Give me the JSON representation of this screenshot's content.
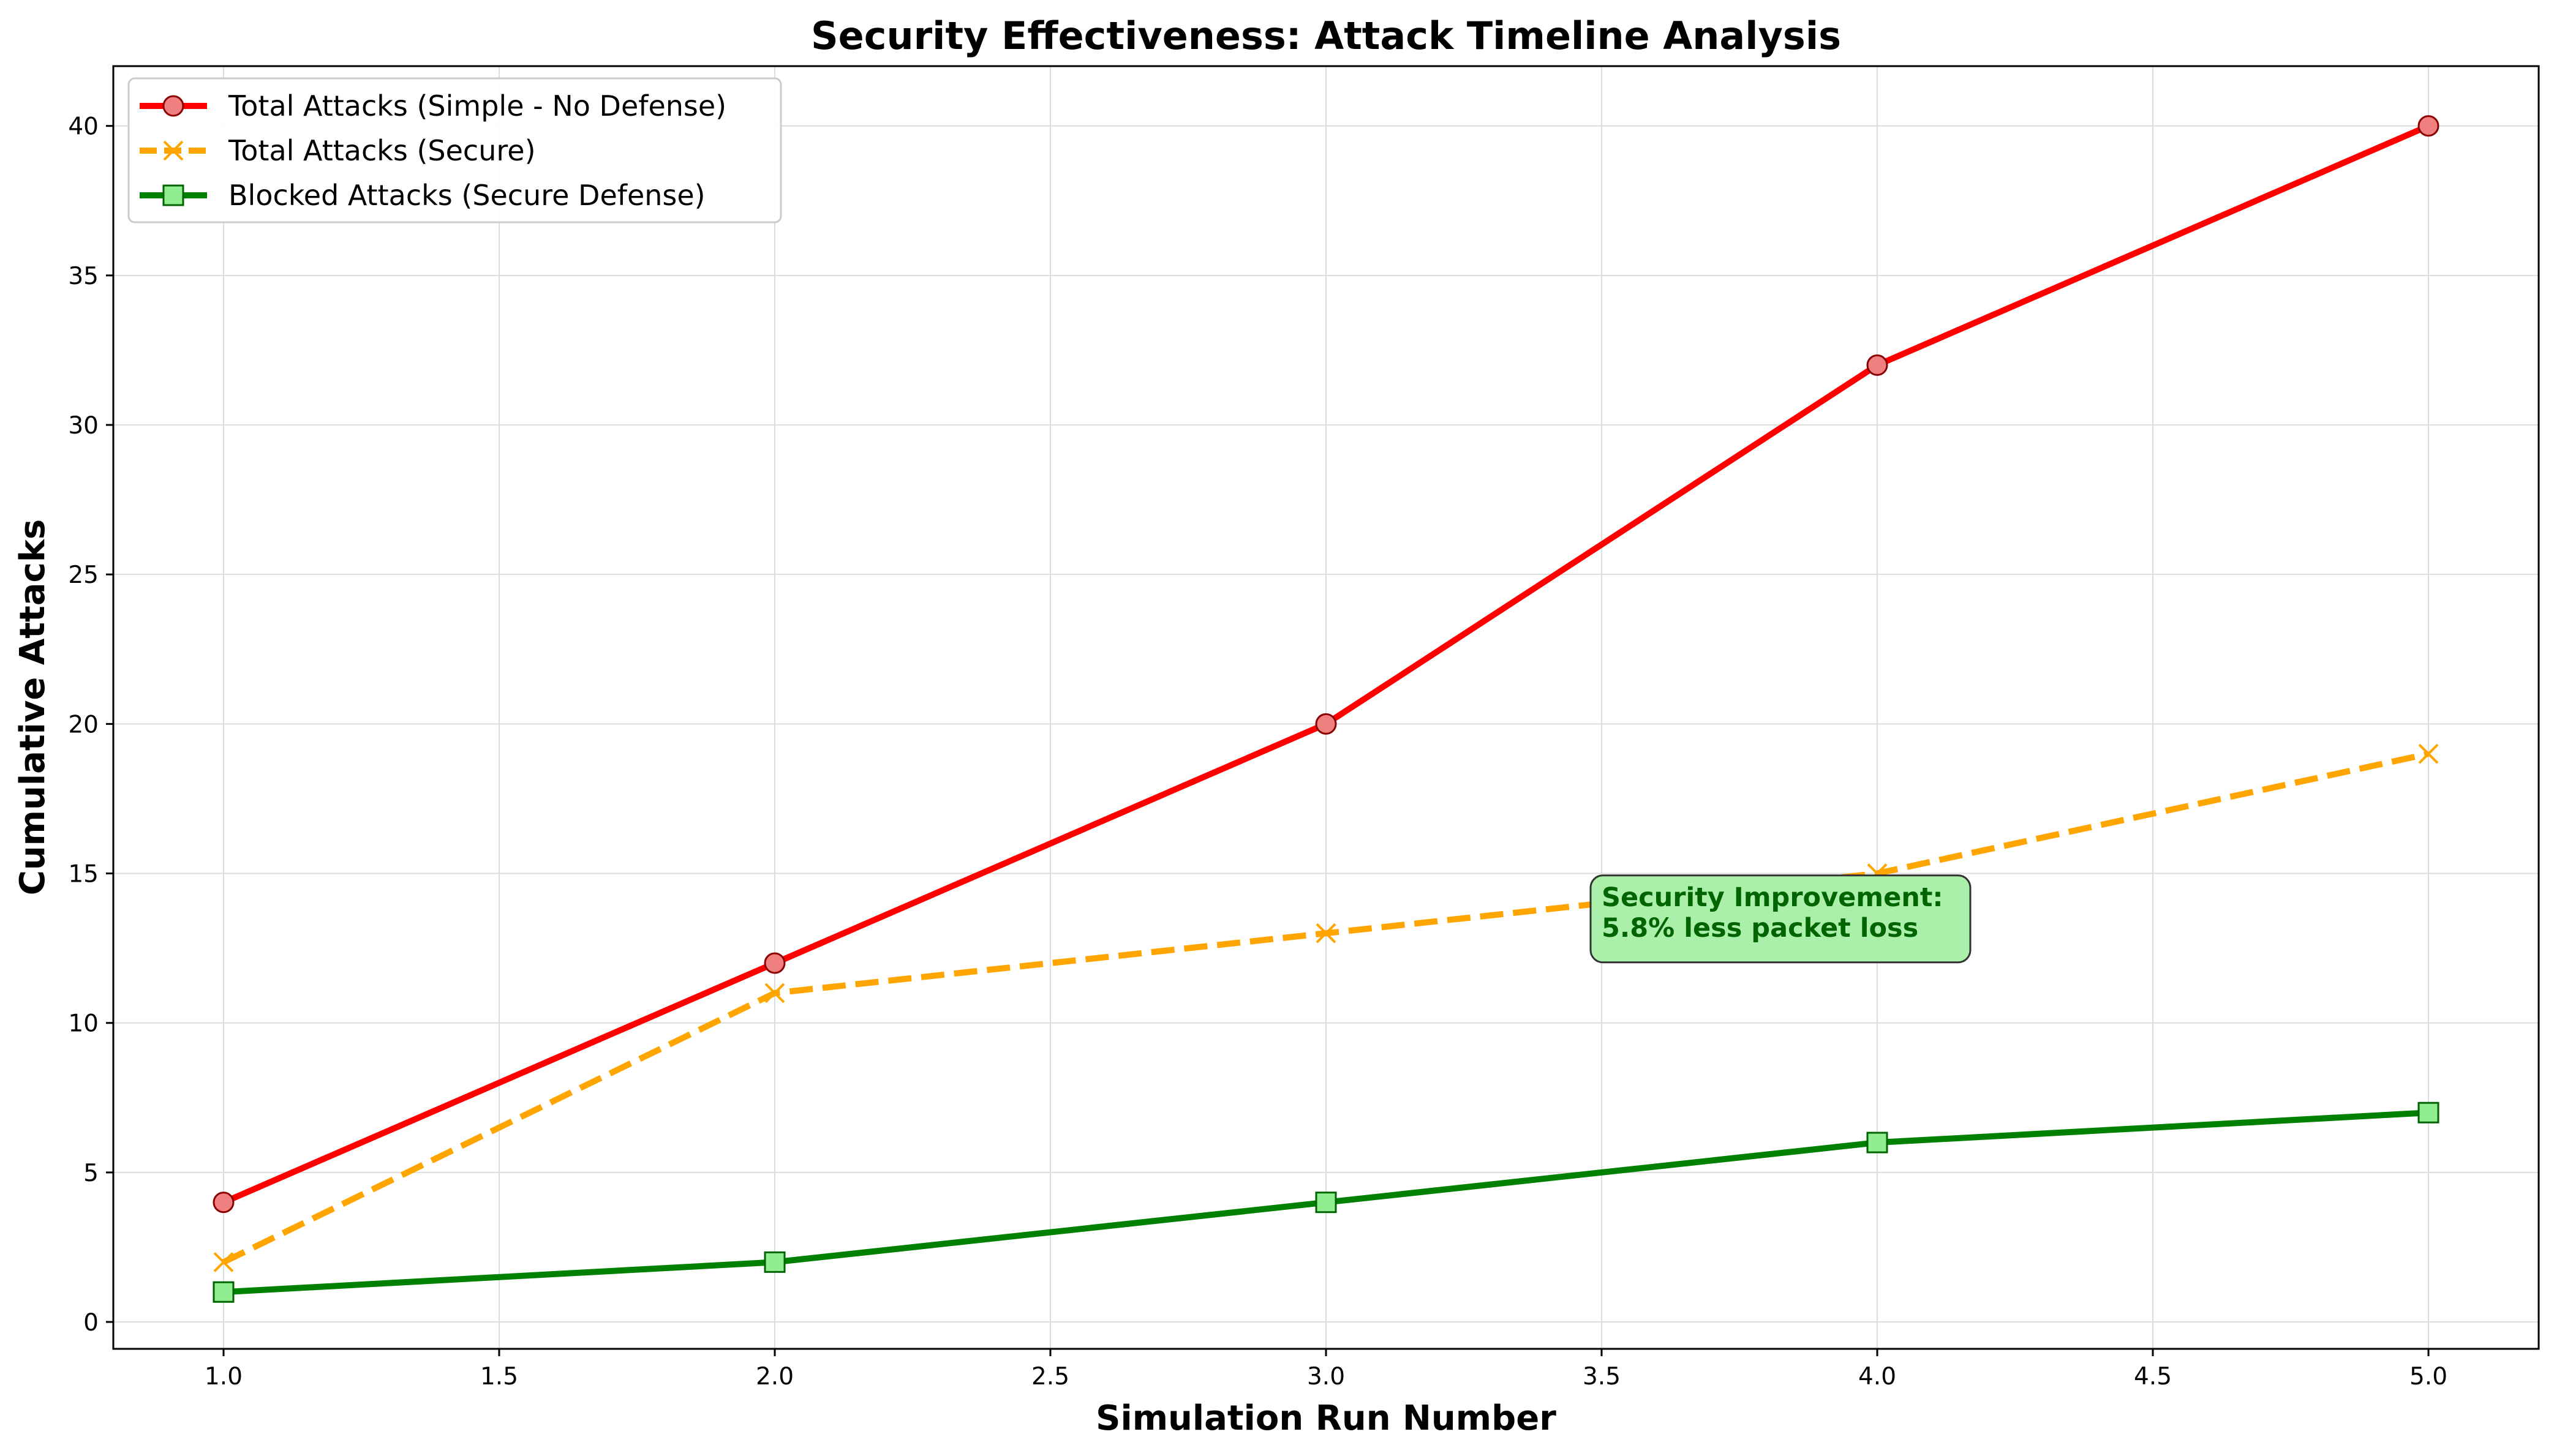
{
  "chart_data": {
    "type": "line",
    "title": "Security Effectiveness: Attack Timeline Analysis",
    "xlabel": "Simulation Run Number",
    "ylabel": "Cumulative Attacks",
    "xlim": [
      0.8,
      5.2
    ],
    "ylim": [
      -0.9,
      42
    ],
    "xticks": [
      1.0,
      1.5,
      2.0,
      2.5,
      3.0,
      3.5,
      4.0,
      4.5,
      5.0
    ],
    "xtick_labels": [
      "1.0",
      "1.5",
      "2.0",
      "2.5",
      "3.0",
      "3.5",
      "4.0",
      "4.5",
      "5.0"
    ],
    "yticks": [
      0,
      5,
      10,
      15,
      20,
      25,
      30,
      35,
      40
    ],
    "ytick_labels": [
      "0",
      "5",
      "10",
      "15",
      "20",
      "25",
      "30",
      "35",
      "40"
    ],
    "grid": true,
    "legend_position": "top-left",
    "x": [
      1,
      2,
      3,
      4,
      5
    ],
    "series": [
      {
        "name": "Total Attacks (Simple - No Defense)",
        "values": [
          4,
          12,
          20,
          32,
          40
        ],
        "color": "#ff0000",
        "marker": "circle",
        "marker_fill": "#f08080",
        "marker_edge": "#8b0000",
        "line_style": "solid"
      },
      {
        "name": "Total Attacks (Secure)",
        "values": [
          2,
          11,
          13,
          15,
          19
        ],
        "color": "#ffa500",
        "marker": "x",
        "marker_fill": "#ffa500",
        "marker_edge": "#ffa500",
        "line_style": "dashed"
      },
      {
        "name": "Blocked Attacks (Secure Defense)",
        "values": [
          1,
          2,
          4,
          6,
          7
        ],
        "color": "#008000",
        "marker": "square",
        "marker_fill": "#90ee90",
        "marker_edge": "#006400",
        "line_style": "solid"
      }
    ],
    "annotation": {
      "lines": [
        "Security Improvement:",
        "5.8% less packet loss"
      ],
      "anchor_x": 3.5,
      "anchor_y": 13.5,
      "color": "#006400",
      "background": "#aaf0aa"
    }
  }
}
